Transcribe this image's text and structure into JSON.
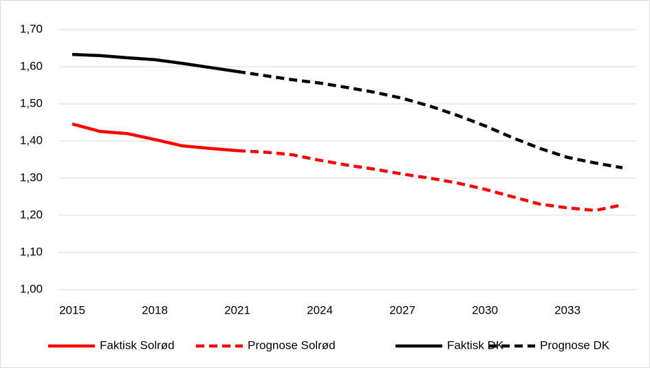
{
  "chart_data": {
    "type": "line",
    "x": [
      2015,
      2016,
      2017,
      2018,
      2019,
      2020,
      2021,
      2022,
      2023,
      2024,
      2025,
      2026,
      2027,
      2028,
      2029,
      2030,
      2031,
      2032,
      2033,
      2034,
      2035
    ],
    "xlim": [
      2014.5,
      2035.5
    ],
    "xticks": [
      2015,
      2018,
      2021,
      2024,
      2027,
      2030,
      2033
    ],
    "ylim": [
      1.0,
      1.7
    ],
    "yticks": [
      {
        "value": 1.0,
        "label": "1,00"
      },
      {
        "value": 1.1,
        "label": "1,10"
      },
      {
        "value": 1.2,
        "label": "1,20"
      },
      {
        "value": 1.3,
        "label": "1,30"
      },
      {
        "value": 1.4,
        "label": "1,40"
      },
      {
        "value": 1.5,
        "label": "1,50"
      },
      {
        "value": 1.6,
        "label": "1,60"
      },
      {
        "value": 1.7,
        "label": "1,70"
      }
    ],
    "grid": true,
    "legend": "bottom",
    "series": [
      {
        "name": "Faktisk Solrød",
        "color": "#ff0000",
        "line_style": "solid",
        "values": [
          1.446,
          1.426,
          1.42,
          1.404,
          1.387,
          1.38,
          1.374,
          null,
          null,
          null,
          null,
          null,
          null,
          null,
          null,
          null,
          null,
          null,
          null,
          null,
          null
        ]
      },
      {
        "name": "Prognose Solrød",
        "color": "#ff0000",
        "line_style": "dashed",
        "values": [
          null,
          null,
          null,
          null,
          null,
          null,
          1.374,
          1.37,
          1.363,
          1.348,
          1.335,
          1.324,
          1.311,
          1.3,
          1.287,
          1.27,
          1.25,
          1.23,
          1.22,
          1.213,
          1.228
        ]
      },
      {
        "name": "Faktisk DK",
        "color": "#000000",
        "line_style": "solid",
        "values": [
          1.633,
          1.63,
          1.624,
          1.619,
          1.609,
          1.598,
          1.587,
          null,
          null,
          null,
          null,
          null,
          null,
          null,
          null,
          null,
          null,
          null,
          null,
          null,
          null
        ]
      },
      {
        "name": "Prognose DK",
        "color": "#000000",
        "line_style": "dashed",
        "values": [
          null,
          null,
          null,
          null,
          null,
          null,
          1.587,
          1.576,
          1.565,
          1.556,
          1.544,
          1.531,
          1.515,
          1.494,
          1.469,
          1.441,
          1.409,
          1.38,
          1.356,
          1.341,
          1.328
        ]
      }
    ]
  }
}
